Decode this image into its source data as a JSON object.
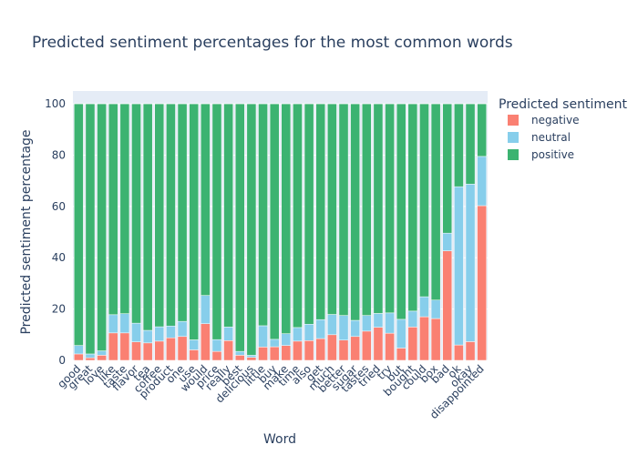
{
  "chart_data": {
    "type": "bar",
    "stacked": true,
    "title": "Predicted sentiment percentages for the most common words",
    "xlabel": "Word",
    "ylabel": "Predicted sentiment percentage",
    "ylim": [
      0,
      105
    ],
    "yticks": [
      0,
      20,
      40,
      60,
      80,
      100
    ],
    "grid": true,
    "legend": {
      "title": "Predicted sentiment",
      "placement": "top-right"
    },
    "categories": [
      "good",
      "great",
      "love",
      "like",
      "taste",
      "flavor",
      "tea",
      "coffee",
      "product",
      "one",
      "use",
      "would",
      "price",
      "really",
      "best",
      "delicious",
      "little",
      "buy",
      "make",
      "time",
      "also",
      "get",
      "much",
      "better",
      "sugar",
      "tastes",
      "tried",
      "try",
      "but",
      "bought",
      "could",
      "box",
      "bad",
      "ok",
      "okay",
      "disappointed"
    ],
    "series": [
      {
        "name": "negative",
        "color": "#fa8072",
        "values": [
          2.5,
          1.0,
          2.0,
          10.7,
          10.7,
          7.2,
          6.8,
          7.5,
          8.8,
          9.3,
          4.1,
          14.3,
          3.5,
          7.7,
          2.0,
          1.2,
          5.2,
          5.3,
          5.8,
          7.5,
          7.7,
          8.5,
          10.0,
          7.9,
          9.3,
          11.4,
          12.9,
          10.6,
          4.8,
          13.0,
          17.0,
          16.3,
          42.7,
          6.0,
          7.3,
          60.3
        ]
      },
      {
        "name": "neutral",
        "color": "#87ceeb",
        "values": [
          3.3,
          1.5,
          1.7,
          7.1,
          7.5,
          7.3,
          4.9,
          5.6,
          4.6,
          5.9,
          3.9,
          11.0,
          4.6,
          5.3,
          1.5,
          0.8,
          8.3,
          2.9,
          4.6,
          5.3,
          6.4,
          7.4,
          7.9,
          9.6,
          6.3,
          6.1,
          5.4,
          7.9,
          11.2,
          6.2,
          7.8,
          7.2,
          6.9,
          61.7,
          61.4,
          19.2
        ]
      },
      {
        "name": "positive",
        "color": "#3cb371",
        "values": [
          94.2,
          97.5,
          96.3,
          82.2,
          81.8,
          85.5,
          88.3,
          86.9,
          86.6,
          84.8,
          92.0,
          74.7,
          91.9,
          87.0,
          96.5,
          98.0,
          86.5,
          91.8,
          89.6,
          87.2,
          85.9,
          84.1,
          82.1,
          82.5,
          84.4,
          82.5,
          81.7,
          81.5,
          84.0,
          80.8,
          75.2,
          76.5,
          50.4,
          32.3,
          31.3,
          20.5
        ]
      }
    ]
  }
}
